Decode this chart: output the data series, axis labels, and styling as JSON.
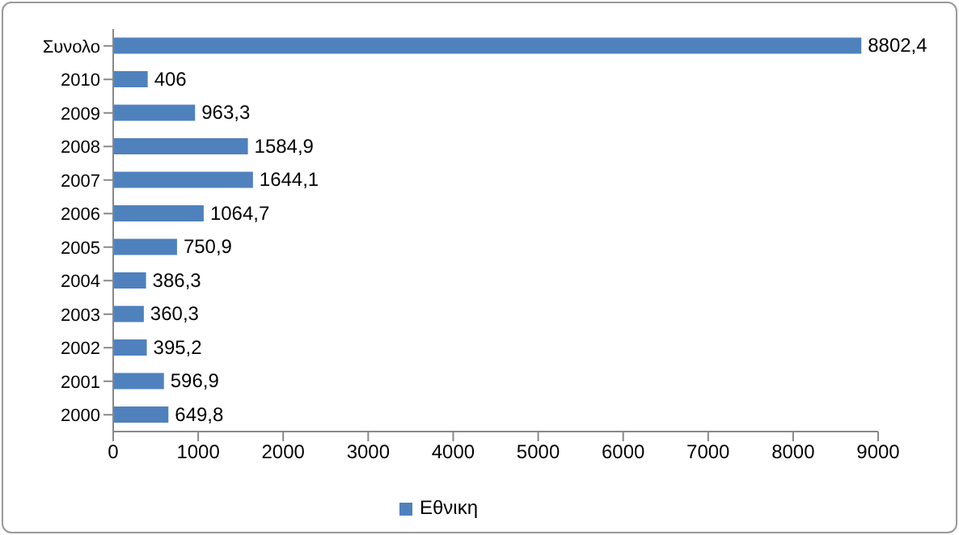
{
  "chart_data": {
    "type": "bar",
    "orientation": "horizontal",
    "categories": [
      "Συνολο",
      "2010",
      "2009",
      "2008",
      "2007",
      "2006",
      "2005",
      "2004",
      "2003",
      "2002",
      "2001",
      "2000"
    ],
    "series": [
      {
        "name": "Εθνικη",
        "color": "#4f81bd",
        "values": [
          8802.4,
          406,
          963.3,
          1584.9,
          1644.1,
          1064.7,
          750.9,
          386.3,
          360.3,
          395.2,
          596.9,
          649.8
        ],
        "value_labels": [
          "8802,4",
          "406",
          "963,3",
          "1584,9",
          "1644,1",
          "1064,7",
          "750,9",
          "386,3",
          "360,3",
          "395,2",
          "596,9",
          "649,8"
        ]
      }
    ],
    "xlim": [
      0,
      9000
    ],
    "xticks": [
      0,
      1000,
      2000,
      3000,
      4000,
      5000,
      6000,
      7000,
      8000,
      9000
    ],
    "legend": "bottom"
  }
}
